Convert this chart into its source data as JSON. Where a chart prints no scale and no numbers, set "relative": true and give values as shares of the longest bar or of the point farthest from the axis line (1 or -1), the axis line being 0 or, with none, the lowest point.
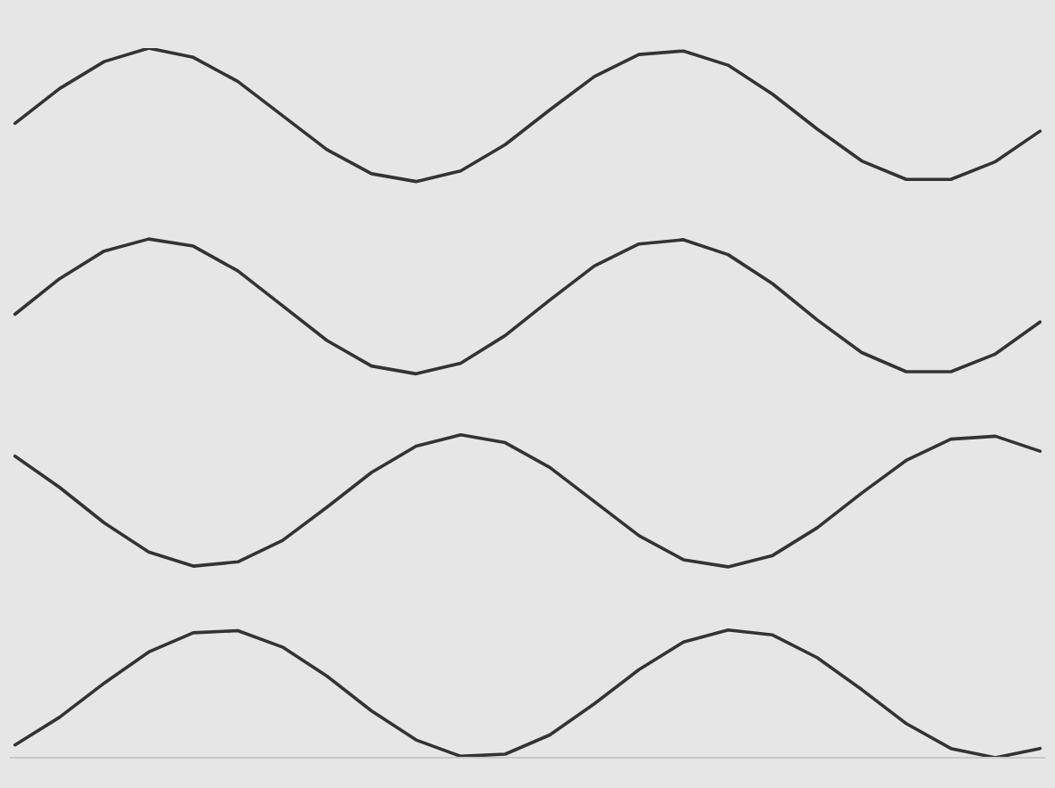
{
  "chart_data": {
    "type": "line",
    "relative": true,
    "categories": [
      null,
      null,
      null,
      null,
      null,
      null,
      null,
      null,
      null,
      null,
      null,
      null,
      null,
      null,
      null,
      null,
      null,
      null,
      null,
      null,
      null,
      null,
      null,
      null
    ],
    "series": [
      {
        "color": "#333333",
        "values": [
          0.894,
          0.943,
          0.981,
          1,
          0.987,
          0.953,
          0.905,
          0.857,
          0.823,
          0.812,
          0.827,
          0.864,
          0.913,
          0.96,
          0.991,
          0.996,
          0.976,
          0.935,
          0.886,
          0.841,
          0.815,
          0.815,
          0.84,
          0.883
        ]
      },
      {
        "color": "#333333",
        "values": [
          0.625,
          0.675,
          0.714,
          0.731,
          0.721,
          0.686,
          0.637,
          0.588,
          0.552,
          0.541,
          0.556,
          0.595,
          0.645,
          0.693,
          0.724,
          0.73,
          0.709,
          0.668,
          0.617,
          0.571,
          0.544,
          0.544,
          0.569,
          0.614
        ]
      },
      {
        "color": "#333333",
        "values": [
          0.425,
          0.381,
          0.331,
          0.29,
          0.27,
          0.276,
          0.306,
          0.353,
          0.402,
          0.439,
          0.455,
          0.444,
          0.409,
          0.361,
          0.313,
          0.279,
          0.269,
          0.285,
          0.324,
          0.373,
          0.419,
          0.449,
          0.453,
          0.432
        ]
      },
      {
        "color": "#333333",
        "values": [
          0.018,
          0.057,
          0.105,
          0.149,
          0.176,
          0.179,
          0.156,
          0.115,
          0.066,
          0.025,
          0.002,
          0.005,
          0.032,
          0.076,
          0.124,
          0.163,
          0.18,
          0.173,
          0.141,
          0.096,
          0.048,
          0.013,
          0.0,
          0.013
        ]
      }
    ]
  }
}
